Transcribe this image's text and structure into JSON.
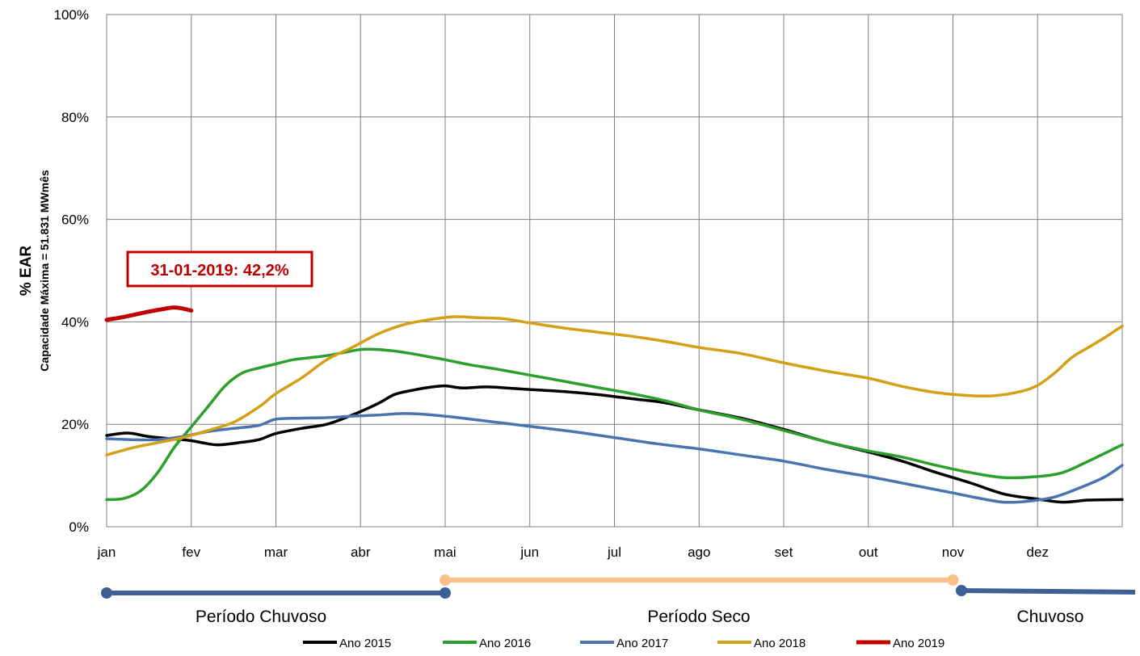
{
  "chart_data": {
    "type": "line",
    "ylabel": "% EAR",
    "ylabel_sub": "Capacidade Máxima = 51.831 MWmês",
    "ylim": [
      0,
      100
    ],
    "yticks": [
      0,
      20,
      40,
      60,
      80,
      100
    ],
    "ytick_labels": [
      "0%",
      "20%",
      "40%",
      "60%",
      "80%",
      "100%"
    ],
    "xlim": [
      0,
      12
    ],
    "xtick_labels": [
      "jan",
      "fev",
      "mar",
      "abr",
      "mai",
      "jun",
      "jul",
      "ago",
      "set",
      "out",
      "nov",
      "dez"
    ],
    "grid": true,
    "legend_position": "bottom",
    "series": [
      {
        "name": "Ano 2015",
        "color": "#000000",
        "points": [
          [
            0.0,
            17.8
          ],
          [
            0.25,
            18.3
          ],
          [
            0.5,
            17.6
          ],
          [
            0.75,
            17.2
          ],
          [
            1.0,
            16.8
          ],
          [
            1.3,
            16.0
          ],
          [
            1.6,
            16.5
          ],
          [
            1.8,
            17.0
          ],
          [
            2.0,
            18.2
          ],
          [
            2.3,
            19.2
          ],
          [
            2.6,
            20.0
          ],
          [
            2.9,
            21.8
          ],
          [
            3.2,
            24.0
          ],
          [
            3.4,
            25.8
          ],
          [
            3.6,
            26.6
          ],
          [
            3.8,
            27.2
          ],
          [
            4.0,
            27.5
          ],
          [
            4.2,
            27.1
          ],
          [
            4.5,
            27.3
          ],
          [
            4.8,
            27.0
          ],
          [
            5.0,
            26.8
          ],
          [
            5.4,
            26.4
          ],
          [
            5.8,
            25.8
          ],
          [
            6.2,
            25.0
          ],
          [
            6.6,
            24.2
          ],
          [
            7.0,
            22.8
          ],
          [
            7.5,
            21.2
          ],
          [
            8.0,
            19.0
          ],
          [
            8.5,
            16.6
          ],
          [
            9.0,
            14.6
          ],
          [
            9.4,
            12.8
          ],
          [
            9.8,
            10.6
          ],
          [
            10.2,
            8.6
          ],
          [
            10.6,
            6.4
          ],
          [
            11.0,
            5.4
          ],
          [
            11.3,
            4.8
          ],
          [
            11.6,
            5.2
          ],
          [
            12.0,
            5.3
          ]
        ]
      },
      {
        "name": "Ano 2016",
        "color": "#2ca02c",
        "points": [
          [
            0.0,
            5.3
          ],
          [
            0.2,
            5.5
          ],
          [
            0.4,
            7.0
          ],
          [
            0.6,
            10.5
          ],
          [
            0.8,
            15.5
          ],
          [
            1.0,
            19.5
          ],
          [
            1.2,
            23.5
          ],
          [
            1.4,
            27.5
          ],
          [
            1.6,
            30.0
          ],
          [
            1.8,
            31.0
          ],
          [
            2.0,
            31.8
          ],
          [
            2.2,
            32.6
          ],
          [
            2.4,
            33.0
          ],
          [
            2.6,
            33.4
          ],
          [
            2.8,
            34.0
          ],
          [
            3.0,
            34.6
          ],
          [
            3.2,
            34.6
          ],
          [
            3.4,
            34.3
          ],
          [
            3.6,
            33.8
          ],
          [
            3.8,
            33.2
          ],
          [
            4.0,
            32.6
          ],
          [
            4.3,
            31.6
          ],
          [
            4.6,
            30.8
          ],
          [
            5.0,
            29.6
          ],
          [
            5.4,
            28.4
          ],
          [
            5.8,
            27.2
          ],
          [
            6.2,
            26.0
          ],
          [
            6.6,
            24.6
          ],
          [
            7.0,
            22.8
          ],
          [
            7.5,
            21.0
          ],
          [
            8.0,
            18.8
          ],
          [
            8.5,
            16.6
          ],
          [
            9.0,
            14.8
          ],
          [
            9.4,
            13.6
          ],
          [
            9.8,
            12.0
          ],
          [
            10.2,
            10.6
          ],
          [
            10.6,
            9.6
          ],
          [
            11.0,
            9.8
          ],
          [
            11.3,
            10.6
          ],
          [
            11.6,
            12.8
          ],
          [
            12.0,
            16.0
          ]
        ]
      },
      {
        "name": "Ano 2017",
        "color": "#4a74ad",
        "points": [
          [
            0.0,
            17.2
          ],
          [
            0.3,
            17.0
          ],
          [
            0.6,
            17.0
          ],
          [
            0.9,
            17.6
          ],
          [
            1.2,
            18.6
          ],
          [
            1.5,
            19.2
          ],
          [
            1.8,
            19.8
          ],
          [
            2.0,
            21.0
          ],
          [
            2.3,
            21.2
          ],
          [
            2.6,
            21.3
          ],
          [
            2.9,
            21.6
          ],
          [
            3.2,
            21.8
          ],
          [
            3.5,
            22.1
          ],
          [
            3.8,
            21.9
          ],
          [
            4.1,
            21.4
          ],
          [
            4.5,
            20.6
          ],
          [
            5.0,
            19.6
          ],
          [
            5.5,
            18.6
          ],
          [
            6.0,
            17.4
          ],
          [
            6.5,
            16.2
          ],
          [
            7.0,
            15.2
          ],
          [
            7.5,
            14.0
          ],
          [
            8.0,
            12.8
          ],
          [
            8.5,
            11.2
          ],
          [
            9.0,
            9.8
          ],
          [
            9.5,
            8.2
          ],
          [
            10.0,
            6.6
          ],
          [
            10.3,
            5.6
          ],
          [
            10.6,
            4.8
          ],
          [
            10.9,
            5.0
          ],
          [
            11.2,
            5.8
          ],
          [
            11.5,
            7.6
          ],
          [
            11.8,
            9.8
          ],
          [
            12.0,
            12.0
          ]
        ]
      },
      {
        "name": "Ano 2018",
        "color": "#d4a017",
        "points": [
          [
            0.0,
            14.0
          ],
          [
            0.3,
            15.4
          ],
          [
            0.6,
            16.4
          ],
          [
            0.9,
            17.4
          ],
          [
            1.2,
            18.8
          ],
          [
            1.5,
            20.4
          ],
          [
            1.8,
            23.4
          ],
          [
            2.0,
            26.0
          ],
          [
            2.3,
            29.0
          ],
          [
            2.6,
            32.6
          ],
          [
            2.9,
            35.0
          ],
          [
            3.2,
            37.6
          ],
          [
            3.5,
            39.4
          ],
          [
            3.8,
            40.4
          ],
          [
            4.1,
            41.0
          ],
          [
            4.4,
            40.8
          ],
          [
            4.7,
            40.6
          ],
          [
            5.0,
            39.8
          ],
          [
            5.4,
            38.8
          ],
          [
            5.8,
            38.0
          ],
          [
            6.2,
            37.2
          ],
          [
            6.6,
            36.2
          ],
          [
            7.0,
            35.0
          ],
          [
            7.5,
            33.8
          ],
          [
            8.0,
            32.0
          ],
          [
            8.5,
            30.4
          ],
          [
            9.0,
            29.0
          ],
          [
            9.4,
            27.4
          ],
          [
            9.8,
            26.2
          ],
          [
            10.2,
            25.6
          ],
          [
            10.5,
            25.6
          ],
          [
            10.8,
            26.4
          ],
          [
            11.0,
            27.6
          ],
          [
            11.2,
            30.0
          ],
          [
            11.4,
            33.0
          ],
          [
            11.6,
            35.0
          ],
          [
            11.8,
            37.0
          ],
          [
            12.0,
            39.2
          ]
        ]
      },
      {
        "name": "Ano 2019",
        "color": "#c00000",
        "points": [
          [
            0.0,
            40.4
          ],
          [
            0.15,
            40.8
          ],
          [
            0.3,
            41.3
          ],
          [
            0.5,
            42.0
          ],
          [
            0.7,
            42.6
          ],
          [
            0.8,
            42.8
          ],
          [
            0.9,
            42.6
          ],
          [
            1.0,
            42.2
          ]
        ]
      }
    ],
    "annotation": {
      "text": "31-01-2019: 42,2%",
      "color": "#c00000"
    },
    "periods": [
      {
        "label": "Período Chuvoso",
        "color": "#3c5f94",
        "start": 0.0,
        "end": 4.0
      },
      {
        "label": "Período Seco",
        "color": "#f9c189",
        "start": 4.0,
        "end": 10.0
      },
      {
        "label": "Chuvoso",
        "color": "#3c5f94",
        "start": 10.1,
        "end": 12.0
      }
    ]
  }
}
